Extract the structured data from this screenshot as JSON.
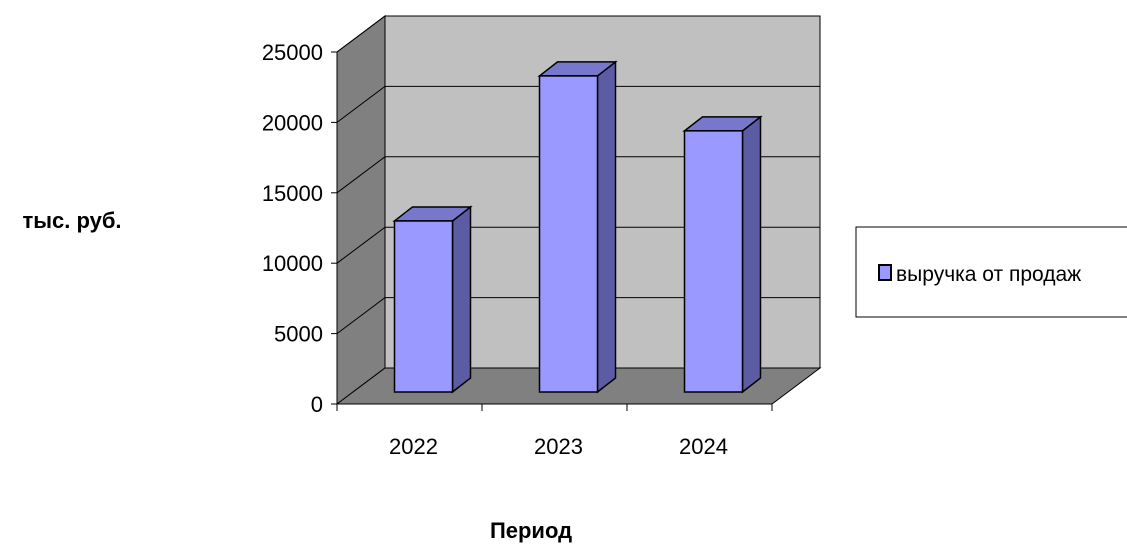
{
  "chart_data": {
    "type": "bar",
    "title": "",
    "xlabel": "Период",
    "ylabel": "тыс. руб.",
    "categories": [
      "2022",
      "2023",
      "2024"
    ],
    "series": [
      {
        "name": "выручка от продаж",
        "values": [
          13000,
          23300,
          19400
        ]
      }
    ],
    "ylim": [
      0,
      25000
    ],
    "yticks": [
      0,
      5000,
      10000,
      15000,
      20000,
      25000
    ],
    "ytick_labels": [
      "0",
      "5000",
      "10000",
      "15000",
      "20000",
      "25000"
    ],
    "grid": true,
    "legend_position": "right",
    "style": "3d-column",
    "colors": {
      "bar_front": "#9999ff",
      "bar_side": "#5c5ca5",
      "bar_top": "#7777cc",
      "bar_outline": "#000000",
      "back_wall": "#c0c0c0",
      "side_wall": "#808080",
      "floor": "#808080",
      "gridline": "#000000"
    }
  }
}
